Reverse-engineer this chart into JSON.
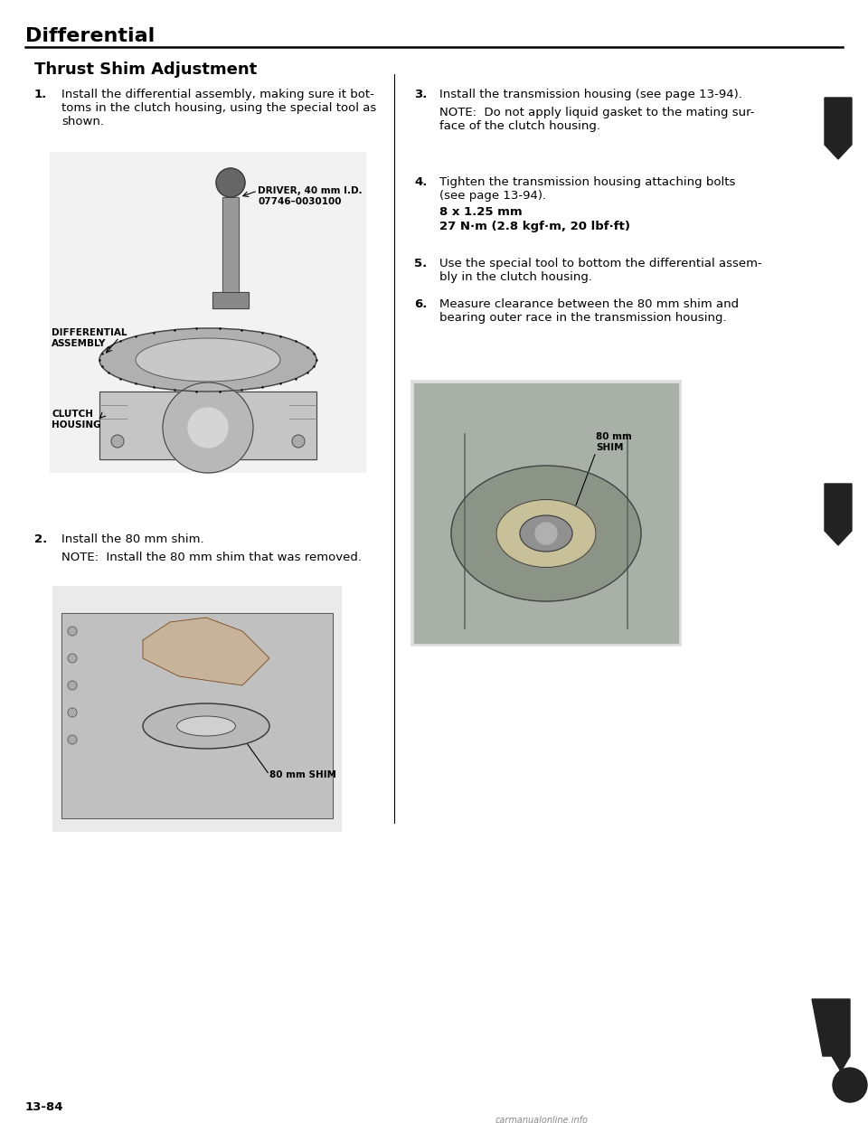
{
  "page_title": "Differential",
  "section_title": "Thrust Shim Adjustment",
  "bg_color": "#ffffff",
  "text_color": "#000000",
  "title_fontsize": 16,
  "section_fontsize": 13,
  "body_fontsize": 9.5,
  "page_number": "13-84",
  "left_column": {
    "step1_heading": "1.",
    "step1_text": "Install the differential assembly, making sure it bot-\ntoms in the clutch housing, using the special tool as\nshown.",
    "img1_label_driver": "DRIVER, 40 mm I.D.\n07746–0030100",
    "img1_label_diff": "DIFFERENTIAL\nASSEMBLY",
    "img1_label_clutch": "CLUTCH\nHOUSING",
    "step2_heading": "2.",
    "step2_text": "Install the 80 mm shim.",
    "step2_note": "NOTE:  Install the 80 mm shim that was removed.",
    "img2_label": "80 mm SHIM"
  },
  "right_column": {
    "step3_heading": "3.",
    "step3_text": "Install the transmission housing (see page 13-94).",
    "step3_note": "NOTE:  Do not apply liquid gasket to the mating sur-\nface of the clutch housing.",
    "step4_heading": "4.",
    "step4_text": "Tighten the transmission housing attaching bolts\n(see page 13-94).",
    "step4_bold1": "8 x 1.25 mm",
    "step4_bold2": "27 N·m (2.8 kgf·m, 20 lbf·ft)",
    "step5_heading": "5.",
    "step5_text": "Use the special tool to bottom the differential assem-\nbly in the clutch housing.",
    "step6_heading": "6.",
    "step6_text": "Measure clearance between the 80 mm shim and\nbearing outer race in the transmission housing.",
    "img3_label": "80 mm\nSHIM"
  },
  "col_split": 0.455,
  "watermark": "carmanualonline.info",
  "watermark_color": "#888888",
  "nav_arrow_color": "#222222"
}
